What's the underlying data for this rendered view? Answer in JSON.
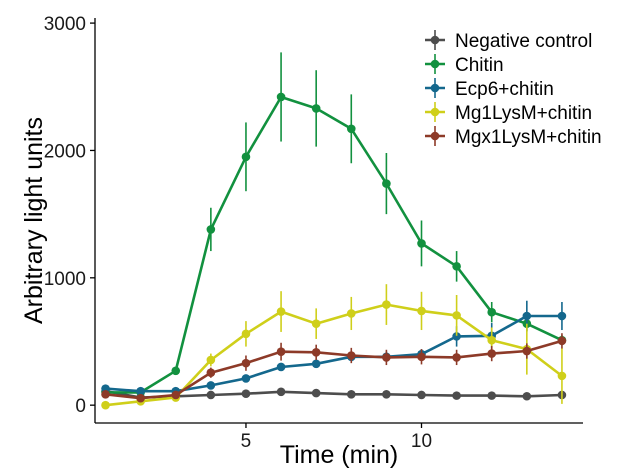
{
  "chart_data": {
    "type": "line",
    "title": "",
    "xlabel": "Time (min)",
    "ylabel": "Arbitrary light units",
    "xlim": [
      0.7,
      14.6
    ],
    "ylim": [
      -140,
      3040
    ],
    "xticks": [
      5,
      10
    ],
    "xtick_labels": [
      "5",
      "10"
    ],
    "yticks": [
      0,
      1000,
      2000,
      3000
    ],
    "ytick_labels": [
      "0",
      "1000",
      "2000",
      "3000"
    ],
    "grid": false,
    "legend_position": "top-right",
    "x": [
      1,
      2,
      3,
      4,
      5,
      6,
      7,
      8,
      9,
      10,
      11,
      12,
      13,
      14
    ],
    "series": [
      {
        "name": "Negative control",
        "color": "#4d4d4d",
        "values": [
          110,
          60,
          70,
          80,
          90,
          105,
          95,
          85,
          85,
          80,
          75,
          75,
          70,
          80
        ],
        "errors": [
          0,
          0,
          0,
          0,
          0,
          0,
          0,
          0,
          0,
          0,
          0,
          0,
          0,
          0
        ]
      },
      {
        "name": "Chitin",
        "color": "#12913f",
        "values": [
          100,
          100,
          270,
          1380,
          1950,
          2420,
          2330,
          2170,
          1740,
          1270,
          1090,
          730,
          640,
          510
        ],
        "errors": [
          0,
          0,
          0,
          170,
          270,
          350,
          300,
          270,
          240,
          180,
          120,
          80,
          60,
          40
        ]
      },
      {
        "name": "Ecp6+chitin",
        "color": "#14688d",
        "values": [
          130,
          110,
          110,
          155,
          210,
          300,
          325,
          380,
          380,
          400,
          540,
          545,
          700,
          700
        ],
        "errors": [
          0,
          0,
          0,
          20,
          30,
          30,
          30,
          40,
          40,
          40,
          80,
          100,
          120,
          110
        ]
      },
      {
        "name": "Mg1LysM+chitin",
        "color": "#cfcf1a",
        "values": [
          0,
          30,
          60,
          355,
          560,
          735,
          640,
          720,
          790,
          740,
          705,
          510,
          440,
          230
        ],
        "errors": [
          0,
          0,
          0,
          50,
          100,
          160,
          120,
          130,
          160,
          150,
          160,
          100,
          200,
          220
        ]
      },
      {
        "name": "Mgx1LysM+chitin",
        "color": "#8d3a28",
        "values": [
          85,
          55,
          80,
          255,
          330,
          420,
          415,
          390,
          375,
          380,
          375,
          405,
          425,
          505
        ],
        "errors": [
          0,
          0,
          0,
          40,
          60,
          70,
          60,
          60,
          60,
          60,
          60,
          60,
          60,
          60
        ]
      }
    ]
  }
}
